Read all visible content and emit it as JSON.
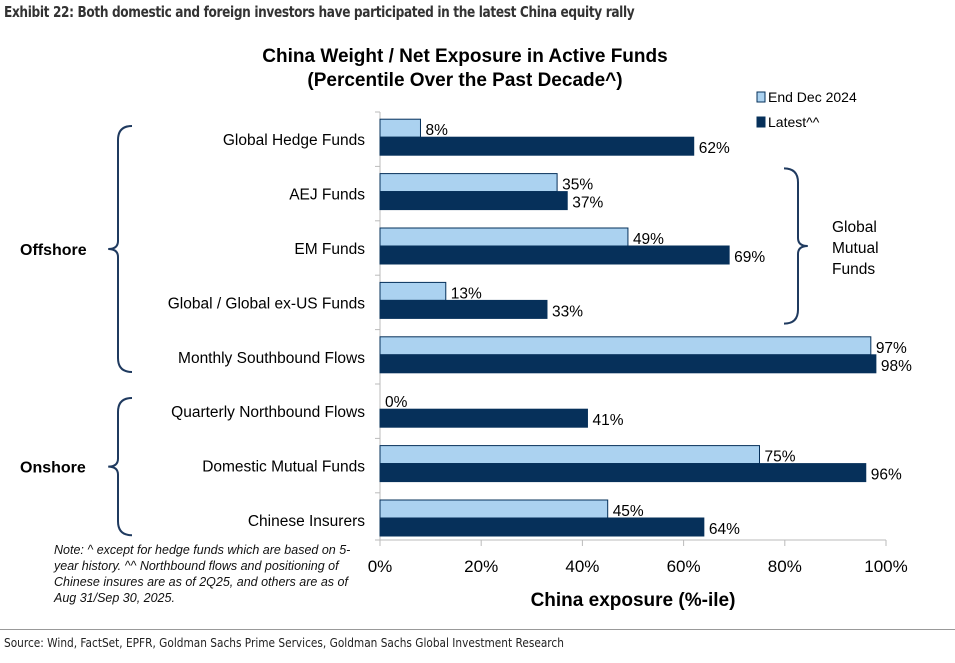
{
  "exhibit_title": "Exhibit 22: Both domestic and foreign investors have participated in the latest China equity rally",
  "note": "Note: ^ except for hedge funds which are based on 5-year history. ^^ Northbound flows and positioning of Chinese insures are as of 2Q25, and others are as of Aug 31/Sep 30, 2025.",
  "source": "Source: Wind, FactSet, EPFR, Goldman Sachs Prime Services, Goldman Sachs Global Investment Research",
  "chart_data": {
    "type": "bar",
    "orientation": "horizontal",
    "title": [
      "China Weight / Net Exposure in Active Funds",
      "(Percentile Over the Past Decade^)"
    ],
    "xlabel": "China exposure  (%-ile)",
    "xlim": [
      0,
      100
    ],
    "xticks": [
      "0%",
      "20%",
      "40%",
      "60%",
      "80%",
      "100%"
    ],
    "grid": false,
    "legend": "top-right",
    "categories": [
      "Global Hedge Funds",
      "AEJ Funds",
      "EM Funds",
      "Global / Global ex-US Funds",
      "Monthly Southbound Flows",
      "Quarterly Northbound Flows",
      "Domestic Mutual Funds",
      "Chinese Insurers"
    ],
    "series": [
      {
        "name": "End Dec 2024",
        "color": "#abd2f0",
        "values": [
          8,
          35,
          49,
          13,
          97,
          0,
          75,
          45
        ],
        "labels": [
          "8%",
          "35%",
          "49%",
          "13%",
          "97%",
          "0%",
          "75%",
          "45%"
        ]
      },
      {
        "name": "Latest^^",
        "color": "#06305a",
        "values": [
          62,
          37,
          69,
          33,
          98,
          41,
          96,
          64
        ],
        "labels": [
          "62%",
          "37%",
          "69%",
          "33%",
          "98%",
          "41%",
          "96%",
          "64%"
        ]
      }
    ],
    "groups": [
      {
        "label": "Offshore",
        "from": 0,
        "to": 4
      },
      {
        "label": "Onshore",
        "from": 5,
        "to": 7
      }
    ],
    "right_group": {
      "label": [
        "Global",
        "Mutual",
        "Funds"
      ],
      "from": 1,
      "to": 3
    }
  }
}
